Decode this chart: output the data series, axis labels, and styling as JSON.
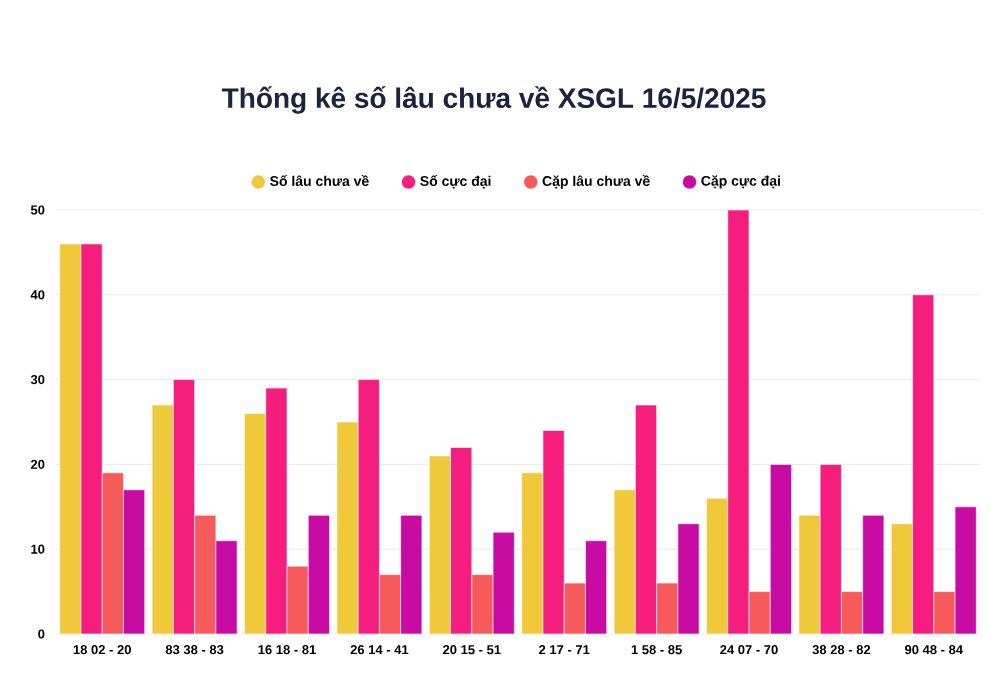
{
  "chart_data": {
    "type": "bar",
    "title": "Thống kê số lâu chưa về XSGL 16/5/2025",
    "categories": [
      "18 02 - 20",
      "83 38 - 83",
      "16 18 - 81",
      "26 14 - 41",
      "20 15 - 51",
      "2 17 - 71",
      "1 58 - 85",
      "24 07 - 70",
      "38 28 - 82",
      "90 48 - 84"
    ],
    "series": [
      {
        "name": "Số lâu chưa về",
        "color": "#f0c93a",
        "values": [
          46,
          27,
          26,
          25,
          21,
          19,
          17,
          16,
          14,
          13
        ]
      },
      {
        "name": "Số cực đại",
        "color": "#f51d7e",
        "values": [
          46,
          30,
          29,
          30,
          22,
          24,
          27,
          50,
          20,
          40
        ]
      },
      {
        "name": "Cặp lâu chưa về",
        "color": "#f65a5a",
        "values": [
          19,
          14,
          8,
          7,
          7,
          6,
          6,
          5,
          5,
          5
        ]
      },
      {
        "name": "Cặp cực đại",
        "color": "#c80ca3",
        "values": [
          17,
          11,
          14,
          14,
          12,
          11,
          13,
          20,
          14,
          15
        ]
      }
    ],
    "ylim": [
      0,
      50
    ],
    "yticks": [
      0,
      10,
      20,
      30,
      40,
      50
    ],
    "grid": "y",
    "legend": "top"
  }
}
